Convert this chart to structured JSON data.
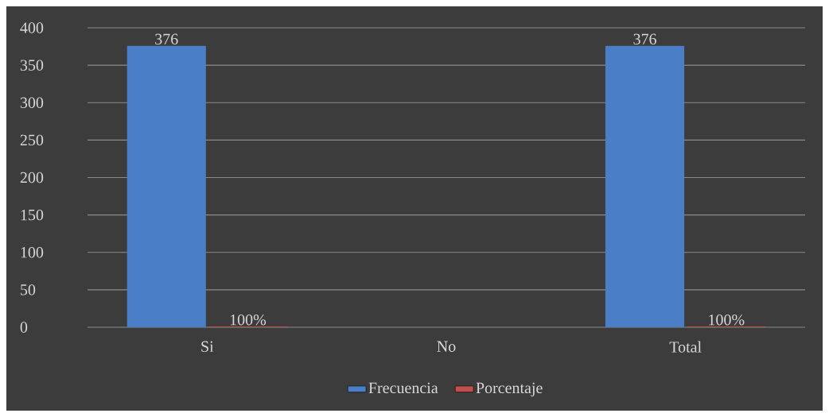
{
  "chart_data": {
    "type": "bar",
    "categories": [
      "Si",
      "No",
      "Total"
    ],
    "series": [
      {
        "name": "Frecuencia",
        "color": "#4a7ec6",
        "values": [
          376,
          null,
          376
        ],
        "value_labels": [
          "376",
          null,
          "376"
        ]
      },
      {
        "name": "Porcentaje",
        "color": "#c0504d",
        "values": [
          1,
          null,
          1
        ],
        "value_labels": [
          "100%",
          null,
          "100%"
        ]
      }
    ],
    "ylim": [
      0,
      400
    ],
    "yticks": [
      0,
      50,
      100,
      150,
      200,
      250,
      300,
      350,
      400
    ],
    "grid": "y",
    "legend": "bottom"
  }
}
